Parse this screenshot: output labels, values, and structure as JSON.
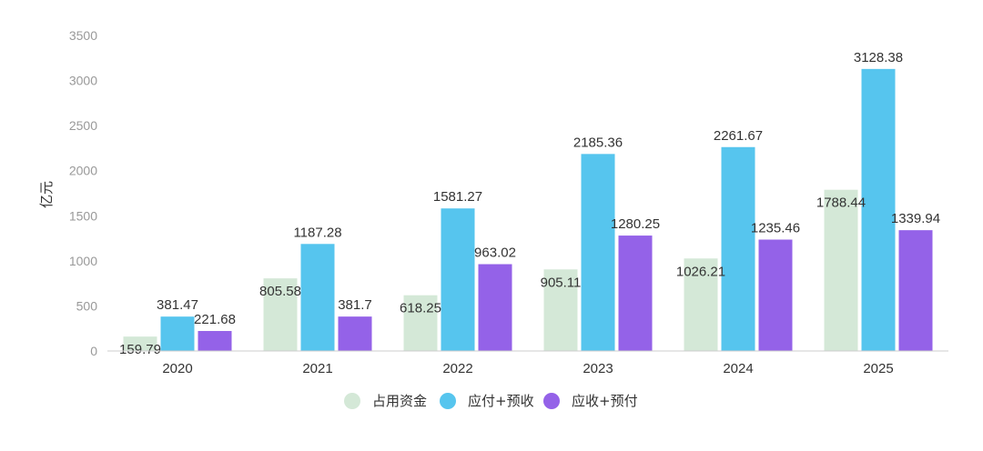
{
  "chart_data": {
    "type": "bar",
    "title": "",
    "xlabel": "",
    "ylabel": "亿元",
    "ylim": [
      0,
      3500
    ],
    "yticks": [
      0,
      500,
      1000,
      1500,
      2000,
      2500,
      3000,
      3500
    ],
    "categories": [
      "2020",
      "2021",
      "2022",
      "2023",
      "2024",
      "2025"
    ],
    "series": [
      {
        "name": "占用资金",
        "color": "#d4e8d7",
        "values": [
          159.79,
          805.58,
          618.25,
          905.11,
          1026.21,
          1788.44
        ]
      },
      {
        "name": "应付+预收",
        "color": "#56c5ee",
        "values": [
          381.47,
          1187.28,
          1581.27,
          2185.36,
          2261.67,
          3128.38
        ]
      },
      {
        "name": "应收+预付",
        "color": "#9462e8",
        "values": [
          221.68,
          381.7,
          963.02,
          1280.25,
          1235.46,
          1339.94
        ]
      }
    ],
    "grid": false,
    "legend_position": "bottom"
  }
}
